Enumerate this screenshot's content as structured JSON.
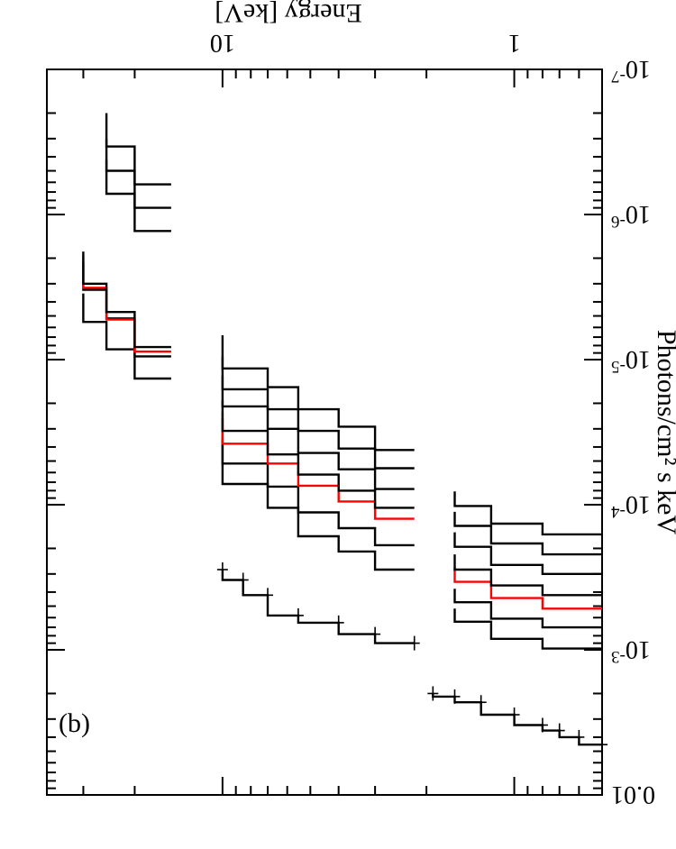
{
  "chart_data": {
    "type": "line",
    "panel_label": "(b)",
    "xlabel": "Energy [keV]",
    "ylabel": "Photons/cm² s keV",
    "xscale": "log",
    "yscale": "log",
    "xlim": [
      0.5,
      40
    ],
    "ylim": [
      1e-07,
      0.01
    ],
    "x_ticks": [
      {
        "value": 1,
        "label": "1"
      },
      {
        "value": 10,
        "label": "10"
      }
    ],
    "y_ticks": [
      {
        "value": 0.01,
        "base": "0.01",
        "exp": ""
      },
      {
        "value": 0.001,
        "base": "10",
        "exp": "-3"
      },
      {
        "value": 0.0001,
        "base": "10",
        "exp": "-4"
      },
      {
        "value": 1e-05,
        "base": "10",
        "exp": "-5"
      },
      {
        "value": 1e-06,
        "base": "10",
        "exp": "-6"
      },
      {
        "value": 1e-07,
        "base": "10",
        "exp": "-7"
      }
    ],
    "grid": false,
    "orientation": "rotated-180",
    "colors": {
      "black": "#000000",
      "red": "#ff0000"
    },
    "series": [
      {
        "color": "#000000",
        "style": "data",
        "points": [
          [
            0.5,
            0.0045
          ],
          [
            0.6,
            0.004
          ],
          [
            0.7,
            0.0036
          ],
          [
            0.8,
            0.0033
          ],
          [
            1.0,
            0.0028
          ],
          [
            1.3,
            0.0023
          ],
          [
            1.6,
            0.0021
          ],
          [
            1.9,
            0.002
          ],
          [
            2.2,
            0.0009
          ],
          [
            3,
            0.00078
          ],
          [
            4,
            0.00065
          ],
          [
            5.5,
            0.00058
          ],
          [
            7,
            0.00042
          ],
          [
            8.5,
            0.00033
          ],
          [
            10,
            0.00028
          ]
        ]
      },
      {
        "color": "#000000",
        "style": "line",
        "points": [
          [
            0.5,
            0.00098
          ],
          [
            0.8,
            0.00084
          ],
          [
            1.2,
            0.00064
          ],
          [
            1.6,
            0.00052
          ],
          [
            2.2,
            0.00028
          ],
          [
            3,
            0.00021
          ],
          [
            4,
            0.000165
          ],
          [
            5.5,
            0.000105
          ],
          [
            7,
            7.2e-05
          ],
          [
            10,
            3.5e-05
          ],
          [
            15,
            1.35e-05
          ],
          [
            20,
            8.5e-06
          ],
          [
            25,
            5.5e-06
          ],
          [
            30,
            3.5e-06
          ]
        ]
      },
      {
        "color": "#000000",
        "style": "line",
        "points": [
          [
            0.5,
            0.0007
          ],
          [
            0.8,
            0.00061
          ],
          [
            1.2,
            0.00047
          ],
          [
            1.6,
            0.00038
          ],
          [
            2.2,
            0.00019
          ],
          [
            3,
            0.000145
          ],
          [
            4,
            0.000113
          ],
          [
            5.5,
            7.5e-05
          ],
          [
            7,
            5.2e-05
          ],
          [
            10,
            2.55e-05
          ],
          [
            15,
            9.5e-06
          ],
          [
            20,
            5.2e-06
          ],
          [
            25,
            3.3e-06
          ],
          [
            30,
            2.1e-06
          ]
        ]
      },
      {
        "color": "#ff0000",
        "style": "line",
        "points": [
          [
            0.5,
            0.00052
          ],
          [
            0.8,
            0.00044
          ],
          [
            1.2,
            0.00034
          ],
          [
            1.6,
            0.00027
          ],
          [
            2.2,
            0.000125
          ],
          [
            3,
            9.5e-05
          ],
          [
            4,
            7.4e-05
          ],
          [
            5.5,
            5.2e-05
          ],
          [
            7,
            3.8e-05
          ],
          [
            10,
            2.3e-05
          ],
          [
            15,
            8.8e-06
          ],
          [
            20,
            5.3e-06
          ],
          [
            25,
            3.2e-06
          ],
          [
            30,
            1.9e-06
          ]
        ]
      },
      {
        "color": "#000000",
        "style": "line",
        "points": [
          [
            0.5,
            0.00042
          ],
          [
            0.8,
            0.00036
          ],
          [
            1.2,
            0.00028
          ],
          [
            1.6,
            0.00022
          ],
          [
            2.2,
            0.000105
          ],
          [
            3,
            8e-05
          ],
          [
            4,
            6.2e-05
          ],
          [
            5.5,
            4.5e-05
          ],
          [
            7,
            3.1e-05
          ],
          [
            10,
            1.9e-05
          ],
          [
            15,
            8.2e-06
          ],
          [
            20,
            4.7e-06
          ],
          [
            25,
            3e-06
          ],
          [
            30,
            1.8e-06
          ]
        ]
      },
      {
        "color": "#000000",
        "style": "line",
        "points": [
          [
            0.5,
            0.0003
          ],
          [
            0.8,
            0.00026
          ],
          [
            1.2,
            0.000195
          ],
          [
            1.6,
            0.000155
          ],
          [
            2.2,
            7.8e-05
          ],
          [
            3,
            5.7e-05
          ],
          [
            4,
            4.4e-05
          ],
          [
            5.5,
            3e-05
          ],
          [
            7,
            2.1e-05
          ],
          [
            10,
            1.3e-05
          ],
          [
            15,
            1.3e-06
          ],
          [
            20,
            7.2e-07
          ],
          [
            25,
            4.2e-07
          ]
        ]
      },
      {
        "color": "#000000",
        "style": "line",
        "points": [
          [
            0.5,
            0.00022
          ],
          [
            0.8,
            0.000185
          ],
          [
            1.2,
            0.00014
          ],
          [
            1.6,
            0.000112
          ],
          [
            2.2,
            5.6e-05
          ],
          [
            3,
            4.1e-05
          ],
          [
            4,
            3.1e-05
          ],
          [
            5.5,
            2.2e-05
          ],
          [
            7,
            1.6e-05
          ],
          [
            10,
            9.5e-06
          ],
          [
            15,
            9e-07
          ],
          [
            20,
            5e-07
          ],
          [
            25,
            3e-07
          ]
        ]
      },
      {
        "color": "#000000",
        "style": "line",
        "points": [
          [
            0.5,
            0.00016
          ],
          [
            0.8,
            0.000135
          ],
          [
            1.2,
            0.000102
          ],
          [
            1.6,
            8.1e-05
          ],
          [
            2.2,
            4.2e-05
          ],
          [
            3,
            2.9e-05
          ],
          [
            4,
            2.2e-05
          ],
          [
            5.5,
            1.55e-05
          ],
          [
            7,
            1.15e-05
          ],
          [
            10,
            6.8e-06
          ],
          [
            15,
            6.2e-07
          ],
          [
            20,
            3.4e-07
          ],
          [
            25,
            2e-07
          ]
        ]
      }
    ]
  }
}
